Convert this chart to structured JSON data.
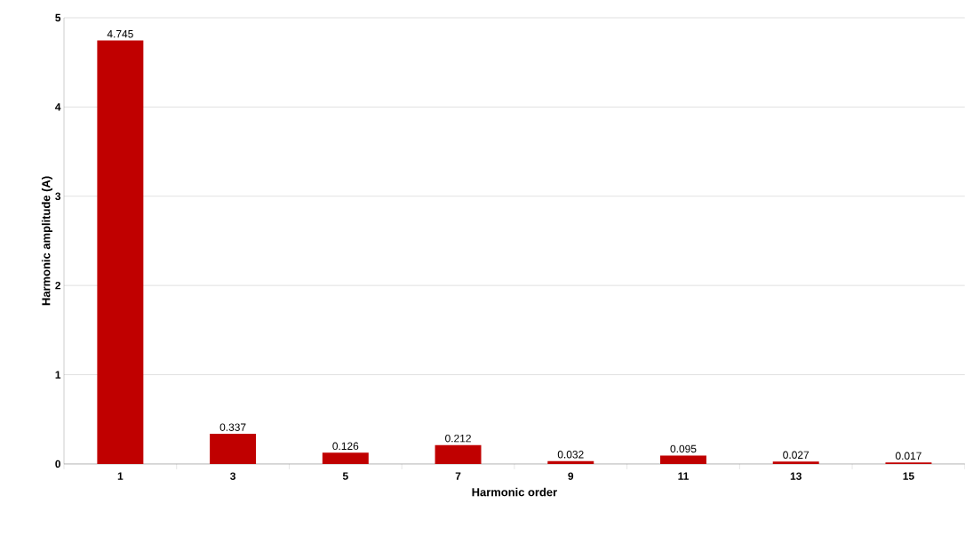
{
  "chart_data": {
    "type": "bar",
    "xlabel": "Harmonic order",
    "ylabel": "Harmonic amplitude (A)",
    "categories": [
      "1",
      "3",
      "5",
      "7",
      "9",
      "11",
      "13",
      "15"
    ],
    "values": [
      4.745,
      0.337,
      0.126,
      0.212,
      0.032,
      0.095,
      0.027,
      0.017
    ],
    "color": "#c00000",
    "ylim": [
      0,
      5
    ],
    "yticks": [
      0,
      1,
      2,
      3,
      4,
      5
    ],
    "grid": "y",
    "data_labels": true
  }
}
